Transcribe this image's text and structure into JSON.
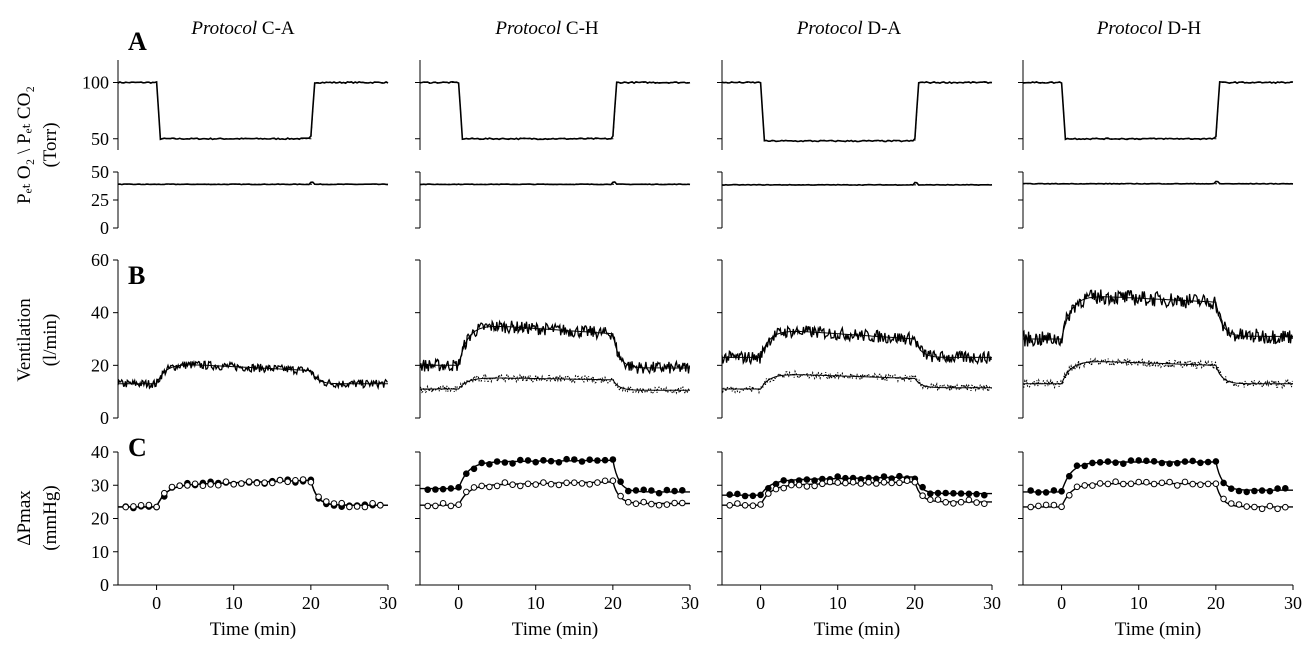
{
  "figure": {
    "panel_letters": [
      "A",
      "B",
      "C"
    ],
    "columns": [
      {
        "italic": "Protocol",
        "suffix": " C-A"
      },
      {
        "italic": "Protocol",
        "suffix": " C-H"
      },
      {
        "italic": "Protocol",
        "suffix": " D-A"
      },
      {
        "italic": "Protocol",
        "suffix": " D-H"
      }
    ],
    "x_axis_label": "Time (min)",
    "x_ticks": [
      0,
      10,
      20,
      30
    ],
    "y_labels": {
      "gas_upper": "Pₑₜ O₂ \\ Pₑₜ CO₂",
      "gas_units": "(Torr)",
      "vent": "Ventilation",
      "vent_units": "(l/min)",
      "dp": "ΔPmax",
      "dp_units": "(mmHg)"
    },
    "colors": {
      "line": "#000000",
      "axis": "#000000",
      "background": "#ffffff"
    }
  },
  "chart_data": [
    {
      "protocol": "C-A",
      "type": "line",
      "xlim": [
        -5,
        30
      ],
      "step_times": [
        0,
        20
      ],
      "rows": {
        "PETO2": {
          "ylim": [
            40,
            120
          ],
          "yticks": [
            50,
            100
          ],
          "segments": [
            100,
            50,
            100
          ]
        },
        "PETCO2": {
          "ylim": [
            0,
            50
          ],
          "yticks": [
            0,
            25,
            50
          ],
          "segments": [
            39,
            39,
            39
          ]
        },
        "ventilation": {
          "ylim": [
            0,
            60
          ],
          "yticks": [
            0,
            20,
            40,
            60
          ],
          "series": [
            {
              "model": [
                13,
                21,
                18,
                13
              ],
              "measured_noise": 1.0,
              "style": "solid-noisy"
            }
          ]
        },
        "dPmax": {
          "ylim": [
            0,
            40
          ],
          "yticks": [
            0,
            10,
            20,
            30,
            40
          ],
          "series": [
            {
              "model": [
                23.5,
                30,
                31.5,
                24
              ],
              "marker": "filled"
            },
            {
              "model": [
                23.5,
                30,
                31.5,
                24
              ],
              "marker": "open"
            }
          ]
        }
      }
    },
    {
      "protocol": "C-H",
      "type": "line",
      "xlim": [
        -5,
        30
      ],
      "step_times": [
        0,
        20
      ],
      "rows": {
        "PETO2": {
          "ylim": [
            40,
            120
          ],
          "yticks": [
            50,
            100
          ],
          "segments": [
            100,
            50,
            100
          ]
        },
        "PETCO2": {
          "ylim": [
            0,
            50
          ],
          "yticks": [
            0,
            25,
            50
          ],
          "segments": [
            39,
            39,
            39
          ]
        },
        "ventilation": {
          "ylim": [
            0,
            60
          ],
          "yticks": [
            0,
            20,
            40,
            60
          ],
          "series": [
            {
              "model": [
                20,
                36,
                32,
                19
              ],
              "measured_noise": 1.5,
              "style": "solid-noisy"
            },
            {
              "model": [
                11,
                15.5,
                14.5,
                10.5
              ],
              "measured_noise": 0.8,
              "style": "dotted"
            }
          ]
        },
        "dPmax": {
          "ylim": [
            0,
            40
          ],
          "yticks": [
            0,
            10,
            20,
            30,
            40
          ],
          "series": [
            {
              "model": [
                29,
                37,
                37.5,
                28
              ],
              "marker": "filled"
            },
            {
              "model": [
                24,
                30,
                31,
                24.5
              ],
              "marker": "open"
            }
          ]
        }
      }
    },
    {
      "protocol": "D-A",
      "type": "line",
      "xlim": [
        -5,
        30
      ],
      "step_times": [
        0,
        20
      ],
      "rows": {
        "PETO2": {
          "ylim": [
            40,
            120
          ],
          "yticks": [
            50,
            100
          ],
          "segments": [
            100,
            48,
            100
          ]
        },
        "PETCO2": {
          "ylim": [
            0,
            50
          ],
          "yticks": [
            0,
            25,
            50
          ],
          "segments": [
            38.5,
            38.5,
            38.5
          ]
        },
        "ventilation": {
          "ylim": [
            0,
            60
          ],
          "yticks": [
            0,
            20,
            40,
            60
          ],
          "series": [
            {
              "model": [
                23,
                34,
                30,
                23
              ],
              "measured_noise": 1.5,
              "style": "solid-noisy"
            },
            {
              "model": [
                11,
                17,
                15,
                11.5
              ],
              "measured_noise": 0.8,
              "style": "dotted"
            }
          ]
        },
        "dPmax": {
          "ylim": [
            0,
            40
          ],
          "yticks": [
            0,
            10,
            20,
            30,
            40
          ],
          "series": [
            {
              "model": [
                27,
                31.5,
                32.5,
                27.5
              ],
              "marker": "filled"
            },
            {
              "model": [
                24,
                30,
                31,
                25
              ],
              "marker": "open"
            }
          ]
        }
      }
    },
    {
      "protocol": "D-H",
      "type": "line",
      "xlim": [
        -5,
        30
      ],
      "step_times": [
        0,
        20
      ],
      "rows": {
        "PETO2": {
          "ylim": [
            40,
            120
          ],
          "yticks": [
            50,
            100
          ],
          "segments": [
            100,
            50,
            100
          ]
        },
        "PETCO2": {
          "ylim": [
            0,
            50
          ],
          "yticks": [
            0,
            25,
            50
          ],
          "segments": [
            39.5,
            39.5,
            39.5
          ]
        },
        "ventilation": {
          "ylim": [
            0,
            60
          ],
          "yticks": [
            0,
            20,
            40,
            60
          ],
          "series": [
            {
              "model": [
                30,
                47,
                44,
                31
              ],
              "measured_noise": 1.8,
              "style": "solid-noisy"
            },
            {
              "model": [
                13,
                22,
                20,
                13
              ],
              "measured_noise": 0.9,
              "style": "dotted"
            }
          ]
        },
        "dPmax": {
          "ylim": [
            0,
            40
          ],
          "yticks": [
            0,
            10,
            20,
            30,
            40
          ],
          "series": [
            {
              "model": [
                28,
                37,
                37,
                28.5
              ],
              "marker": "filled"
            },
            {
              "model": [
                23.5,
                30.5,
                30.5,
                23.5
              ],
              "marker": "open"
            }
          ]
        }
      }
    }
  ]
}
